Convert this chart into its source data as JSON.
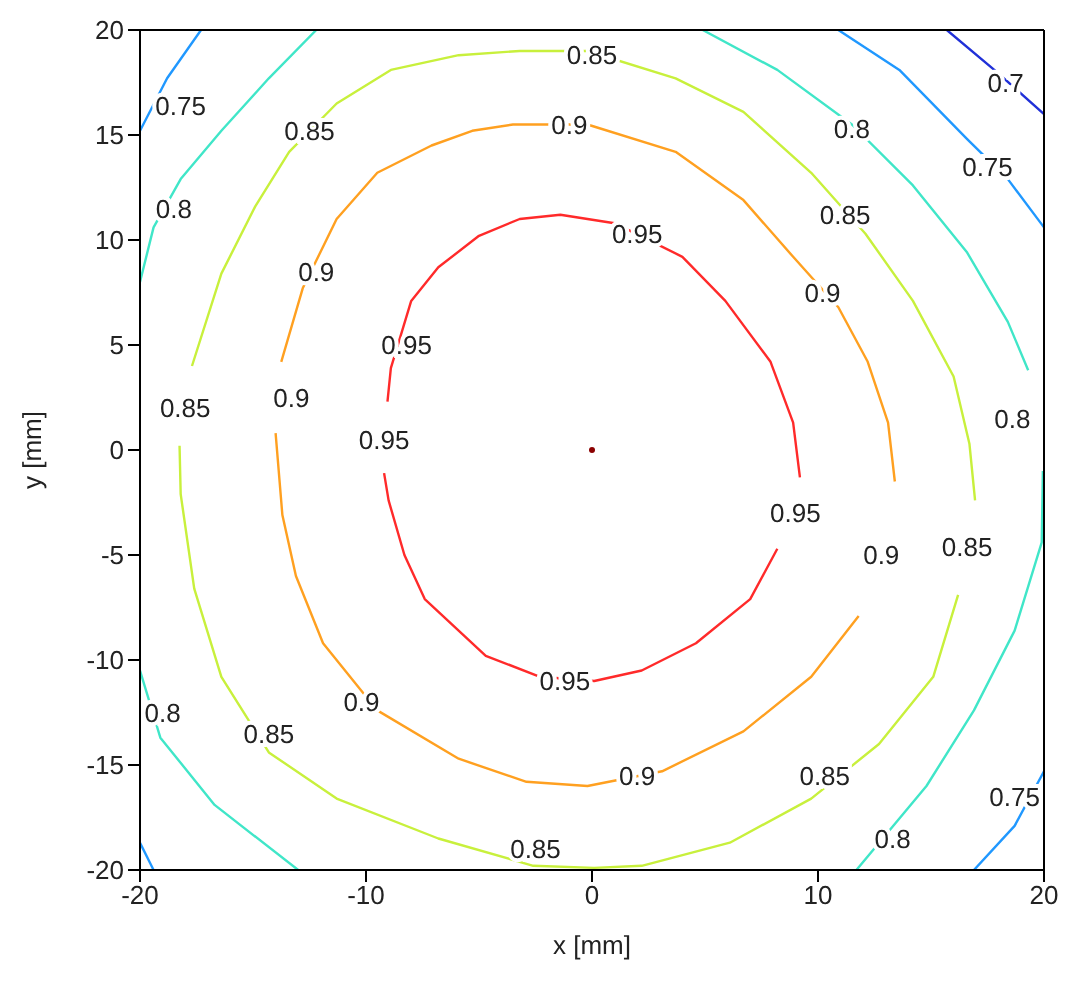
{
  "chart_data": {
    "type": "line",
    "xlabel": "x [mm]",
    "ylabel": "y [mm]",
    "xlim": [
      -20,
      20
    ],
    "xticks": [
      -20,
      -10,
      0,
      10,
      20
    ],
    "ylim": [
      -20,
      20
    ],
    "yticks": [
      -20,
      -15,
      -10,
      -5,
      0,
      5,
      10,
      15,
      20
    ],
    "grid": false,
    "line_style": "solid",
    "series": [
      {
        "color": "#ff2a2a",
        "x": [
          -9.05,
          -8.9,
          -8.0,
          -6.8,
          -5.0,
          -3.2,
          -1.4,
          1.0,
          4.0,
          5.9,
          7.9,
          8.9,
          9.2
        ],
        "values": [
          2.3,
          3.9,
          7.1,
          8.7,
          10.2,
          11.0,
          11.2,
          10.8,
          9.2,
          7.1,
          4.2,
          1.3,
          -1.3
        ]
      },
      {
        "color": "#ff2a2a",
        "x": [
          -9.2,
          -9.0,
          -8.3,
          -7.4,
          -4.7,
          -2.3,
          0.1,
          2.2,
          4.6,
          7.0,
          8.2
        ],
        "values": [
          -1.1,
          -2.4,
          -5.0,
          -7.1,
          -9.8,
          -10.8,
          -11.0,
          -10.5,
          -9.2,
          -7.1,
          -4.7
        ]
      },
      {
        "color": "#ffa020",
        "x": [
          -13.75,
          -12.8,
          -11.3,
          -9.5,
          -7.1,
          -5.3,
          -3.5,
          -0.2,
          3.7,
          6.7,
          8.9,
          10.9,
          12.2,
          13.1,
          13.4
        ],
        "values": [
          4.2,
          7.7,
          11.0,
          13.2,
          14.5,
          15.2,
          15.5,
          15.5,
          14.2,
          11.9,
          9.2,
          6.8,
          4.2,
          1.3,
          -1.5
        ]
      },
      {
        "color": "#ffa020",
        "x": [
          -14.0,
          -13.7,
          -13.1,
          -11.9,
          -9.5,
          -5.9,
          -2.9,
          -0.2,
          3.1,
          6.7,
          9.7,
          11.8
        ],
        "values": [
          0.8,
          -3.1,
          -6.0,
          -9.2,
          -12.4,
          -14.7,
          -15.8,
          -16.0,
          -15.3,
          -13.4,
          -10.8,
          -7.9
        ]
      },
      {
        "color": "#c8f03c",
        "x": [
          -17.7,
          -16.4,
          -14.9,
          -13.4,
          -11.3,
          -8.9,
          -5.9,
          -3.2,
          -0.2,
          3.7,
          6.7,
          9.7,
          12.1,
          14.2,
          16.0,
          16.7,
          16.95
        ],
        "values": [
          4.0,
          8.4,
          11.6,
          14.2,
          16.5,
          18.1,
          18.8,
          19.0,
          19.0,
          17.7,
          16.1,
          13.2,
          10.3,
          7.1,
          3.5,
          0.3,
          -2.4
        ]
      },
      {
        "color": "#c8f03c",
        "x": [
          -18.25,
          -18.2,
          -17.6,
          -16.4,
          -14.3,
          -11.3,
          -6.8,
          -2.6,
          0.1,
          2.2,
          6.1,
          9.7,
          12.7,
          15.1,
          16.2
        ],
        "values": [
          0.2,
          -2.1,
          -6.6,
          -10.8,
          -14.4,
          -16.6,
          -18.5,
          -19.8,
          -19.9,
          -19.8,
          -18.7,
          -16.6,
          -14.0,
          -10.8,
          -6.9
        ]
      },
      {
        "color": "#40e6c8",
        "x": [
          -20,
          -19.4,
          -18.2,
          -16.4,
          -14.3,
          -12.2
        ],
        "values": [
          8.0,
          10.6,
          12.9,
          15.2,
          17.7,
          20
        ]
      },
      {
        "color": "#40e6c8",
        "x": [
          4.9,
          8.2,
          11.5,
          14.2,
          16.6,
          18.4,
          19.3
        ],
        "values": [
          20,
          18.1,
          15.5,
          12.6,
          9.4,
          6.1,
          3.8
        ]
      },
      {
        "color": "#40e6c8",
        "x": [
          11.7,
          14.8,
          16.9,
          18.7,
          19.9,
          19.95
        ],
        "values": [
          -20,
          -16.0,
          -12.4,
          -8.6,
          -4.4,
          -1
        ]
      },
      {
        "color": "#40e6c8",
        "x": [
          -20,
          -19.1,
          -16.7,
          -13.0
        ],
        "values": [
          -10.5,
          -13.7,
          -16.9,
          -20
        ]
      },
      {
        "color": "#2098ff",
        "x": [
          -20,
          -18.8,
          -17.3
        ],
        "values": [
          15.2,
          17.7,
          20
        ]
      },
      {
        "color": "#2098ff",
        "x": [
          10.9,
          13.6,
          16.6,
          18.4,
          20
        ],
        "values": [
          20,
          18.1,
          14.8,
          12.9,
          10.6
        ]
      },
      {
        "color": "#2098ff",
        "x": [
          -20,
          -19.4
        ],
        "values": [
          -18.7,
          -20
        ]
      },
      {
        "color": "#2098ff",
        "x": [
          16.9,
          18.7,
          20
        ],
        "values": [
          -20,
          -17.9,
          -15.3
        ]
      },
      {
        "color": "#2030d8",
        "x": [
          15.7,
          17.8,
          20
        ],
        "values": [
          20,
          18.1,
          16.0
        ]
      },
      {
        "type": "scatter",
        "color": "#8b0000",
        "x": [
          0
        ],
        "values": [
          0
        ]
      }
    ],
    "annotations": [
      "0.75",
      "0.85",
      "0.7",
      "0.85",
      "0.9",
      "0.8",
      "0.75",
      "0.8",
      "0.85",
      "0.95",
      "0.9",
      "0.9",
      "0.95",
      "0.9",
      "0.85",
      "0.8",
      "0.95",
      "0.95",
      "0.85",
      "0.9",
      "0.95",
      "0.9",
      "0.8",
      "0.85",
      "0.9",
      "0.85",
      "0.75",
      "0.8",
      "0.85"
    ]
  }
}
